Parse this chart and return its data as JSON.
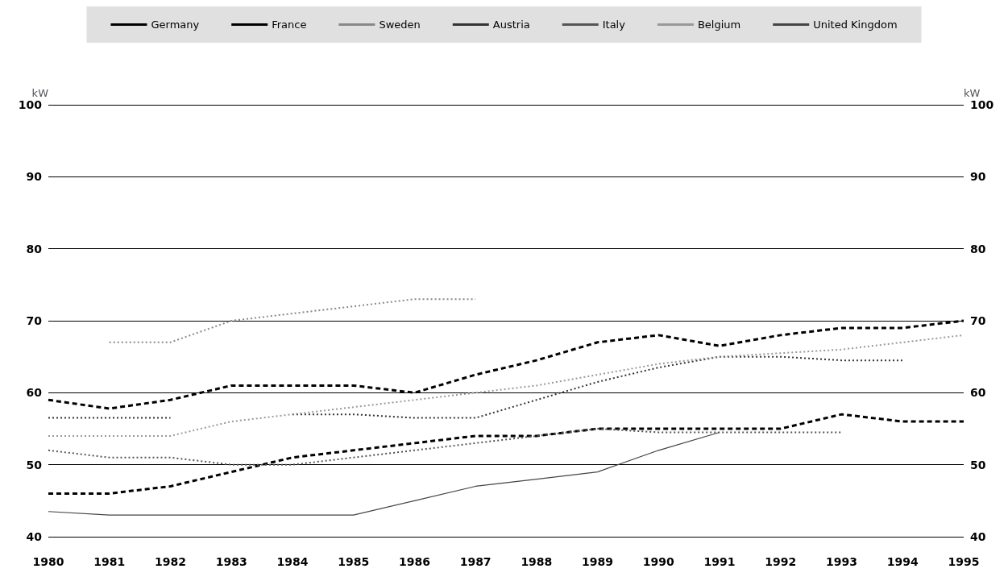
{
  "chart_data": {
    "type": "line",
    "ylabel": "kW",
    "y2label": "kW",
    "x": [
      1980,
      1981,
      1982,
      1983,
      1984,
      1985,
      1986,
      1987,
      1988,
      1989,
      1990,
      1991,
      1992,
      1993,
      1994,
      1995
    ],
    "xlim": [
      1980,
      1995
    ],
    "xticks": [
      1980,
      1981,
      1982,
      1983,
      1984,
      1985,
      1986,
      1987,
      1988,
      1989,
      1990,
      1991,
      1992,
      1993,
      1994,
      1995
    ],
    "ylim": [
      40,
      100
    ],
    "yticks": [
      40,
      50,
      60,
      70,
      80,
      90,
      100
    ],
    "y2lim": [
      40,
      100
    ],
    "y2ticks": [
      40,
      50,
      60,
      70,
      80,
      90,
      100
    ],
    "grid": "y",
    "legend": "top",
    "marker": "none",
    "series": [
      {
        "name": "Germany",
        "color": "#000000",
        "line_style": "dashed",
        "values": [
          59,
          57.8,
          59,
          61,
          61,
          61,
          60,
          62.5,
          64.5,
          67,
          68,
          66.5,
          68,
          69,
          69,
          70
        ]
      },
      {
        "name": "France",
        "color": "#000000",
        "line_style": "dashed",
        "values": [
          46,
          46,
          47,
          49,
          51,
          52,
          53,
          54,
          54,
          55,
          55,
          55,
          55,
          57,
          56,
          56
        ]
      },
      {
        "name": "Sweden",
        "color": "#888888",
        "line_style": "dotted",
        "values": [
          null,
          67,
          67,
          70,
          71,
          72,
          73,
          73,
          null,
          null,
          null,
          null,
          null,
          null,
          null,
          null
        ]
      },
      {
        "name": "Austria",
        "color": "#333333",
        "line_style": "dotted",
        "values": [
          56.5,
          56.5,
          56.5,
          null,
          57,
          57,
          56.5,
          56.5,
          59,
          61.5,
          63.5,
          65,
          65,
          64.5,
          64.5,
          null
        ]
      },
      {
        "name": "Italy",
        "color": "#555555",
        "line_style": "dotted",
        "values": [
          52,
          51,
          51,
          50,
          50,
          51,
          52,
          53,
          54,
          55,
          54.5,
          54.5,
          54.5,
          54.5,
          null,
          null
        ]
      },
      {
        "name": "Belgium",
        "color": "#999999",
        "line_style": "dotted",
        "values": [
          54,
          54,
          54,
          56,
          57,
          58,
          59,
          60,
          61,
          62.5,
          64,
          65,
          65.5,
          66,
          67,
          68
        ]
      },
      {
        "name": "United Kingdom",
        "color": "#444444",
        "line_style": "solid",
        "values": [
          43.5,
          43,
          43,
          43,
          43,
          43,
          45,
          47,
          48,
          49,
          52,
          54.5,
          null,
          null,
          null,
          null
        ]
      }
    ]
  }
}
